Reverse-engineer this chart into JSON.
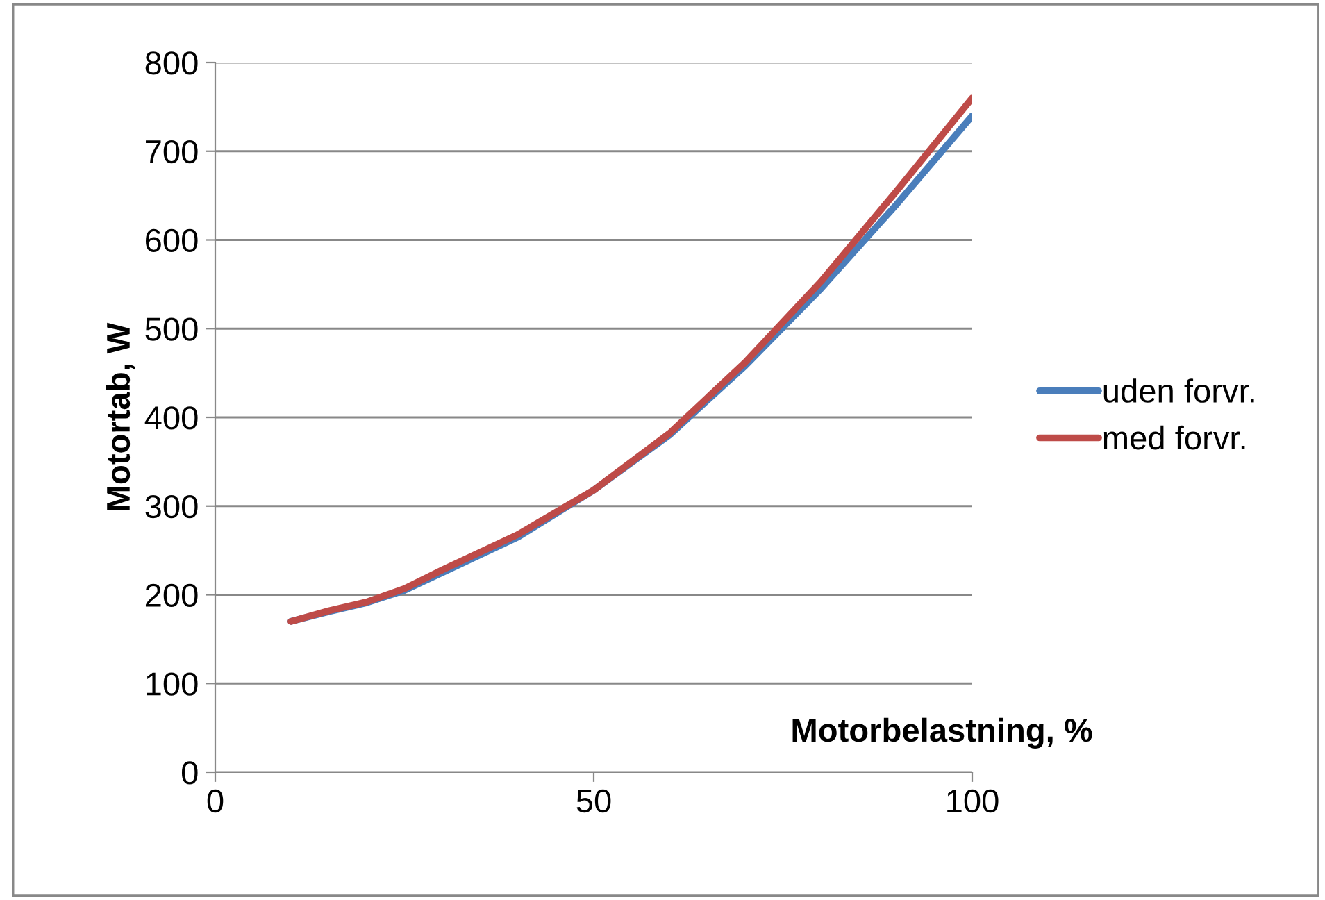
{
  "chart_data": {
    "type": "line",
    "xlabel": "Motorbelastning, %",
    "ylabel": "Motortab, W",
    "x": [
      10,
      15,
      20,
      25,
      30,
      40,
      50,
      60,
      70,
      80,
      90,
      100
    ],
    "series": [
      {
        "name": "uden forvr.",
        "color": "#4a7ebb",
        "values": [
          170,
          181,
          191,
          205,
          225,
          265,
          318,
          380,
          458,
          545,
          640,
          740
        ]
      },
      {
        "name": "med forvr.",
        "color": "#be4b48",
        "values": [
          170,
          182,
          192,
          207,
          228,
          268,
          318,
          382,
          462,
          553,
          655,
          760
        ]
      }
    ],
    "xlim": [
      0,
      100
    ],
    "xticks": [
      0,
      50,
      100
    ],
    "ylim": [
      0,
      800
    ],
    "yticks": [
      0,
      100,
      200,
      300,
      400,
      500,
      600,
      700,
      800
    ],
    "grid": "y",
    "legend": "right",
    "marker": "none",
    "line_style": "solid"
  }
}
